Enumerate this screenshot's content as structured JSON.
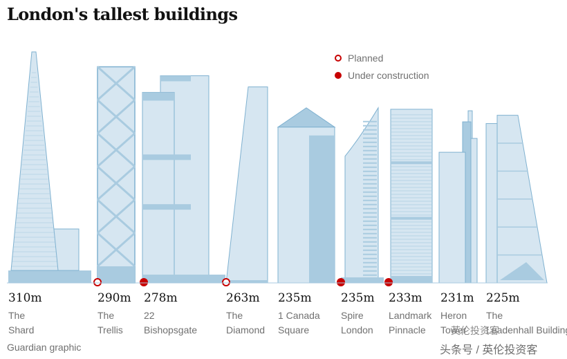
{
  "chart_data": {
    "type": "bar",
    "title": "London's tallest buildings",
    "categories": [
      "The Shard",
      "The Trellis",
      "22 Bishopsgate",
      "The Diamond",
      "1 Canada Square",
      "Spire London",
      "Landmark Pinnacle",
      "Heron Tower",
      "The Leadenhall Building"
    ],
    "name_lines": [
      [
        "The",
        "Shard"
      ],
      [
        "The",
        "Trellis"
      ],
      [
        "22",
        "Bishopsgate"
      ],
      [
        "The",
        "Diamond"
      ],
      [
        "1 Canada",
        "Square"
      ],
      [
        "Spire",
        "London"
      ],
      [
        "Landmark",
        "Pinnacle"
      ],
      [
        "Heron",
        "Tower"
      ],
      [
        "The",
        "Leadenhall Building"
      ]
    ],
    "height_labels": [
      "310m",
      "290m",
      "278m",
      "263m",
      "235m",
      "235m",
      "233m",
      "231m",
      "225m"
    ],
    "values": [
      310,
      290,
      278,
      263,
      235,
      235,
      233,
      231,
      225
    ],
    "status": [
      "",
      "planned",
      "under_construction",
      "planned",
      "",
      "under_construction",
      "under_construction",
      "",
      ""
    ],
    "legend": [
      {
        "key": "planned",
        "label": "Planned"
      },
      {
        "key": "under_construction",
        "label": "Under construction"
      }
    ],
    "ylim": [
      0,
      310
    ]
  },
  "credit": "Guardian graphic",
  "watermark": {
    "text": "头条号 / 英伦投资客",
    "logo": "英伦投资客"
  },
  "colors": {
    "fill": "#d6e6f1",
    "fill_dark": "#a9cbe0",
    "outline": "#7fb1d0",
    "marker": "#c70000",
    "ground": "#a9cbe0"
  }
}
